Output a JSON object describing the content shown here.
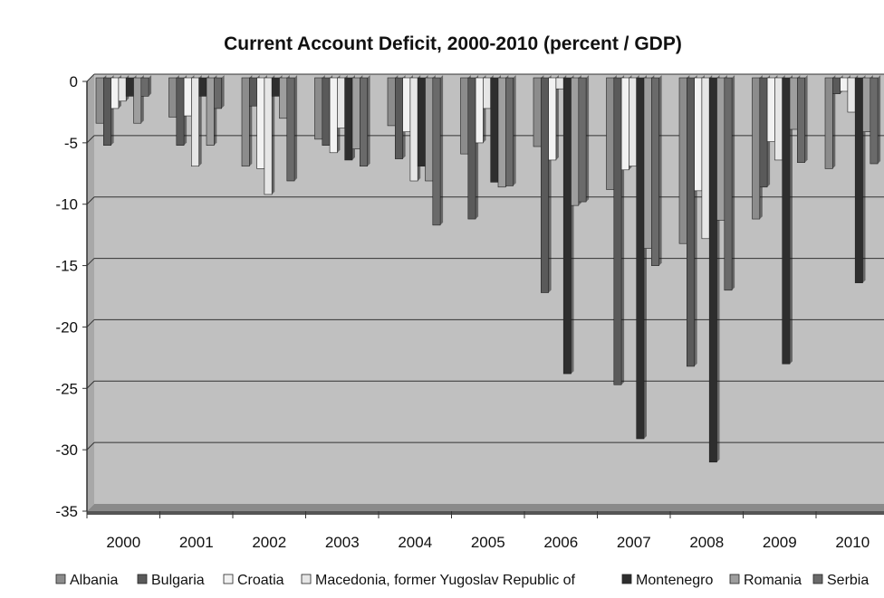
{
  "chart_data": {
    "type": "bar",
    "title": "Current Account Deficit, 2000-2010 (percent / GDP)",
    "xlabel": "",
    "ylabel": "",
    "ylim": [
      -35,
      0
    ],
    "yticks": [
      0,
      -5,
      -10,
      -15,
      -20,
      -25,
      -30,
      -35
    ],
    "categories": [
      "2000",
      "2001",
      "2002",
      "2003",
      "2004",
      "2005",
      "2006",
      "2007",
      "2008",
      "2009",
      "2010"
    ],
    "grid": true,
    "legend_position": "bottom",
    "series": [
      {
        "name": "Albania",
        "color": "#8c8c8c",
        "values": [
          -3.7,
          -3.2,
          -7.2,
          -5.0,
          -3.9,
          -6.2,
          -5.6,
          -9.1,
          -13.5,
          -11.5,
          -7.4
        ]
      },
      {
        "name": "Bulgaria",
        "color": "#5a5a5a",
        "values": [
          -5.5,
          -5.5,
          -2.3,
          -5.5,
          -6.6,
          -11.5,
          -17.5,
          -25.0,
          -23.5,
          -8.9,
          -1.3
        ]
      },
      {
        "name": "Croatia",
        "color": "#f2f2f2",
        "values": [
          -2.5,
          -3.1,
          -7.4,
          -6.1,
          -4.4,
          -5.3,
          -6.7,
          -7.5,
          -9.2,
          -5.2,
          -1.1
        ]
      },
      {
        "name": "Macedonia, former Yugoslav Republic of",
        "color": "#e6e6e6",
        "values": [
          -1.9,
          -7.2,
          -9.5,
          -4.1,
          -8.4,
          -2.5,
          -0.9,
          -7.2,
          -13.1,
          -6.7,
          -2.8
        ]
      },
      {
        "name": "Montenegro",
        "color": "#2e2e2e",
        "values": [
          -1.5,
          -1.5,
          -1.5,
          -6.7,
          -7.2,
          -8.5,
          -24.1,
          -29.4,
          -31.3,
          -23.3,
          -16.7
        ]
      },
      {
        "name": "Romania",
        "color": "#9e9e9e",
        "values": [
          -3.7,
          -5.5,
          -3.3,
          -5.8,
          -8.4,
          -8.9,
          -10.4,
          -13.9,
          -11.6,
          -4.2,
          -4.4
        ]
      },
      {
        "name": "Serbia",
        "color": "#6a6a6a",
        "values": [
          -1.5,
          -2.5,
          -8.4,
          -7.2,
          -12.0,
          -8.8,
          -10.1,
          -15.3,
          -17.3,
          -6.9,
          -7.0
        ]
      }
    ]
  }
}
